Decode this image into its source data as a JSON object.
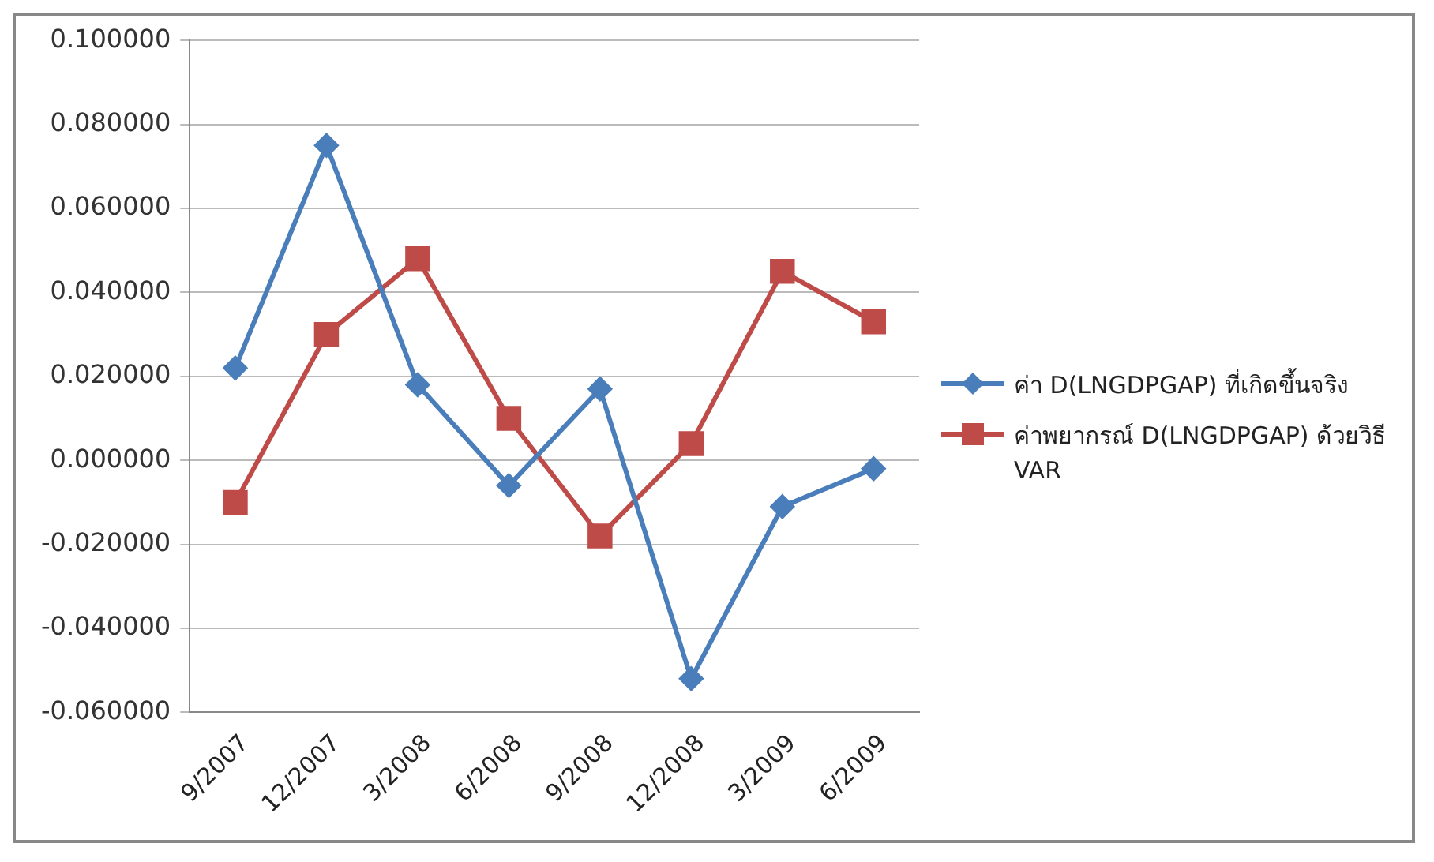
{
  "chart_data": {
    "type": "line",
    "categories": [
      "9/2007",
      "12/2007",
      "3/2008",
      "6/2008",
      "9/2008",
      "12/2008",
      "3/2009",
      "6/2009"
    ],
    "series": [
      {
        "name": "ค่า D(LNGDPGAP) ที่เกิดขึ้นจริง",
        "color": "#4a7ebb",
        "marker": "diamond",
        "values": [
          0.022,
          0.075,
          0.018,
          -0.006,
          0.017,
          -0.052,
          -0.011,
          -0.002
        ]
      },
      {
        "name": "ค่าพยากรณ์ D(LNGDPGAP) ด้วยวิธี VAR",
        "color": "#be4b48",
        "marker": "square",
        "values": [
          -0.01,
          0.03,
          0.048,
          0.01,
          -0.018,
          0.004,
          0.045,
          0.033
        ]
      }
    ],
    "ylim": [
      -0.06,
      0.1
    ],
    "yticks": [
      {
        "value": -0.06,
        "label": "-0.060000"
      },
      {
        "value": -0.04,
        "label": "-0.040000"
      },
      {
        "value": -0.02,
        "label": "-0.020000"
      },
      {
        "value": 0,
        "label": "0.000000"
      },
      {
        "value": 0.02,
        "label": "0.020000"
      },
      {
        "value": 0.04,
        "label": "0.040000"
      },
      {
        "value": 0.06,
        "label": "0.060000"
      },
      {
        "value": 0.08,
        "label": "0.080000"
      },
      {
        "value": 0.1,
        "label": "0.100000"
      }
    ],
    "grid": "y",
    "legend": "right"
  }
}
